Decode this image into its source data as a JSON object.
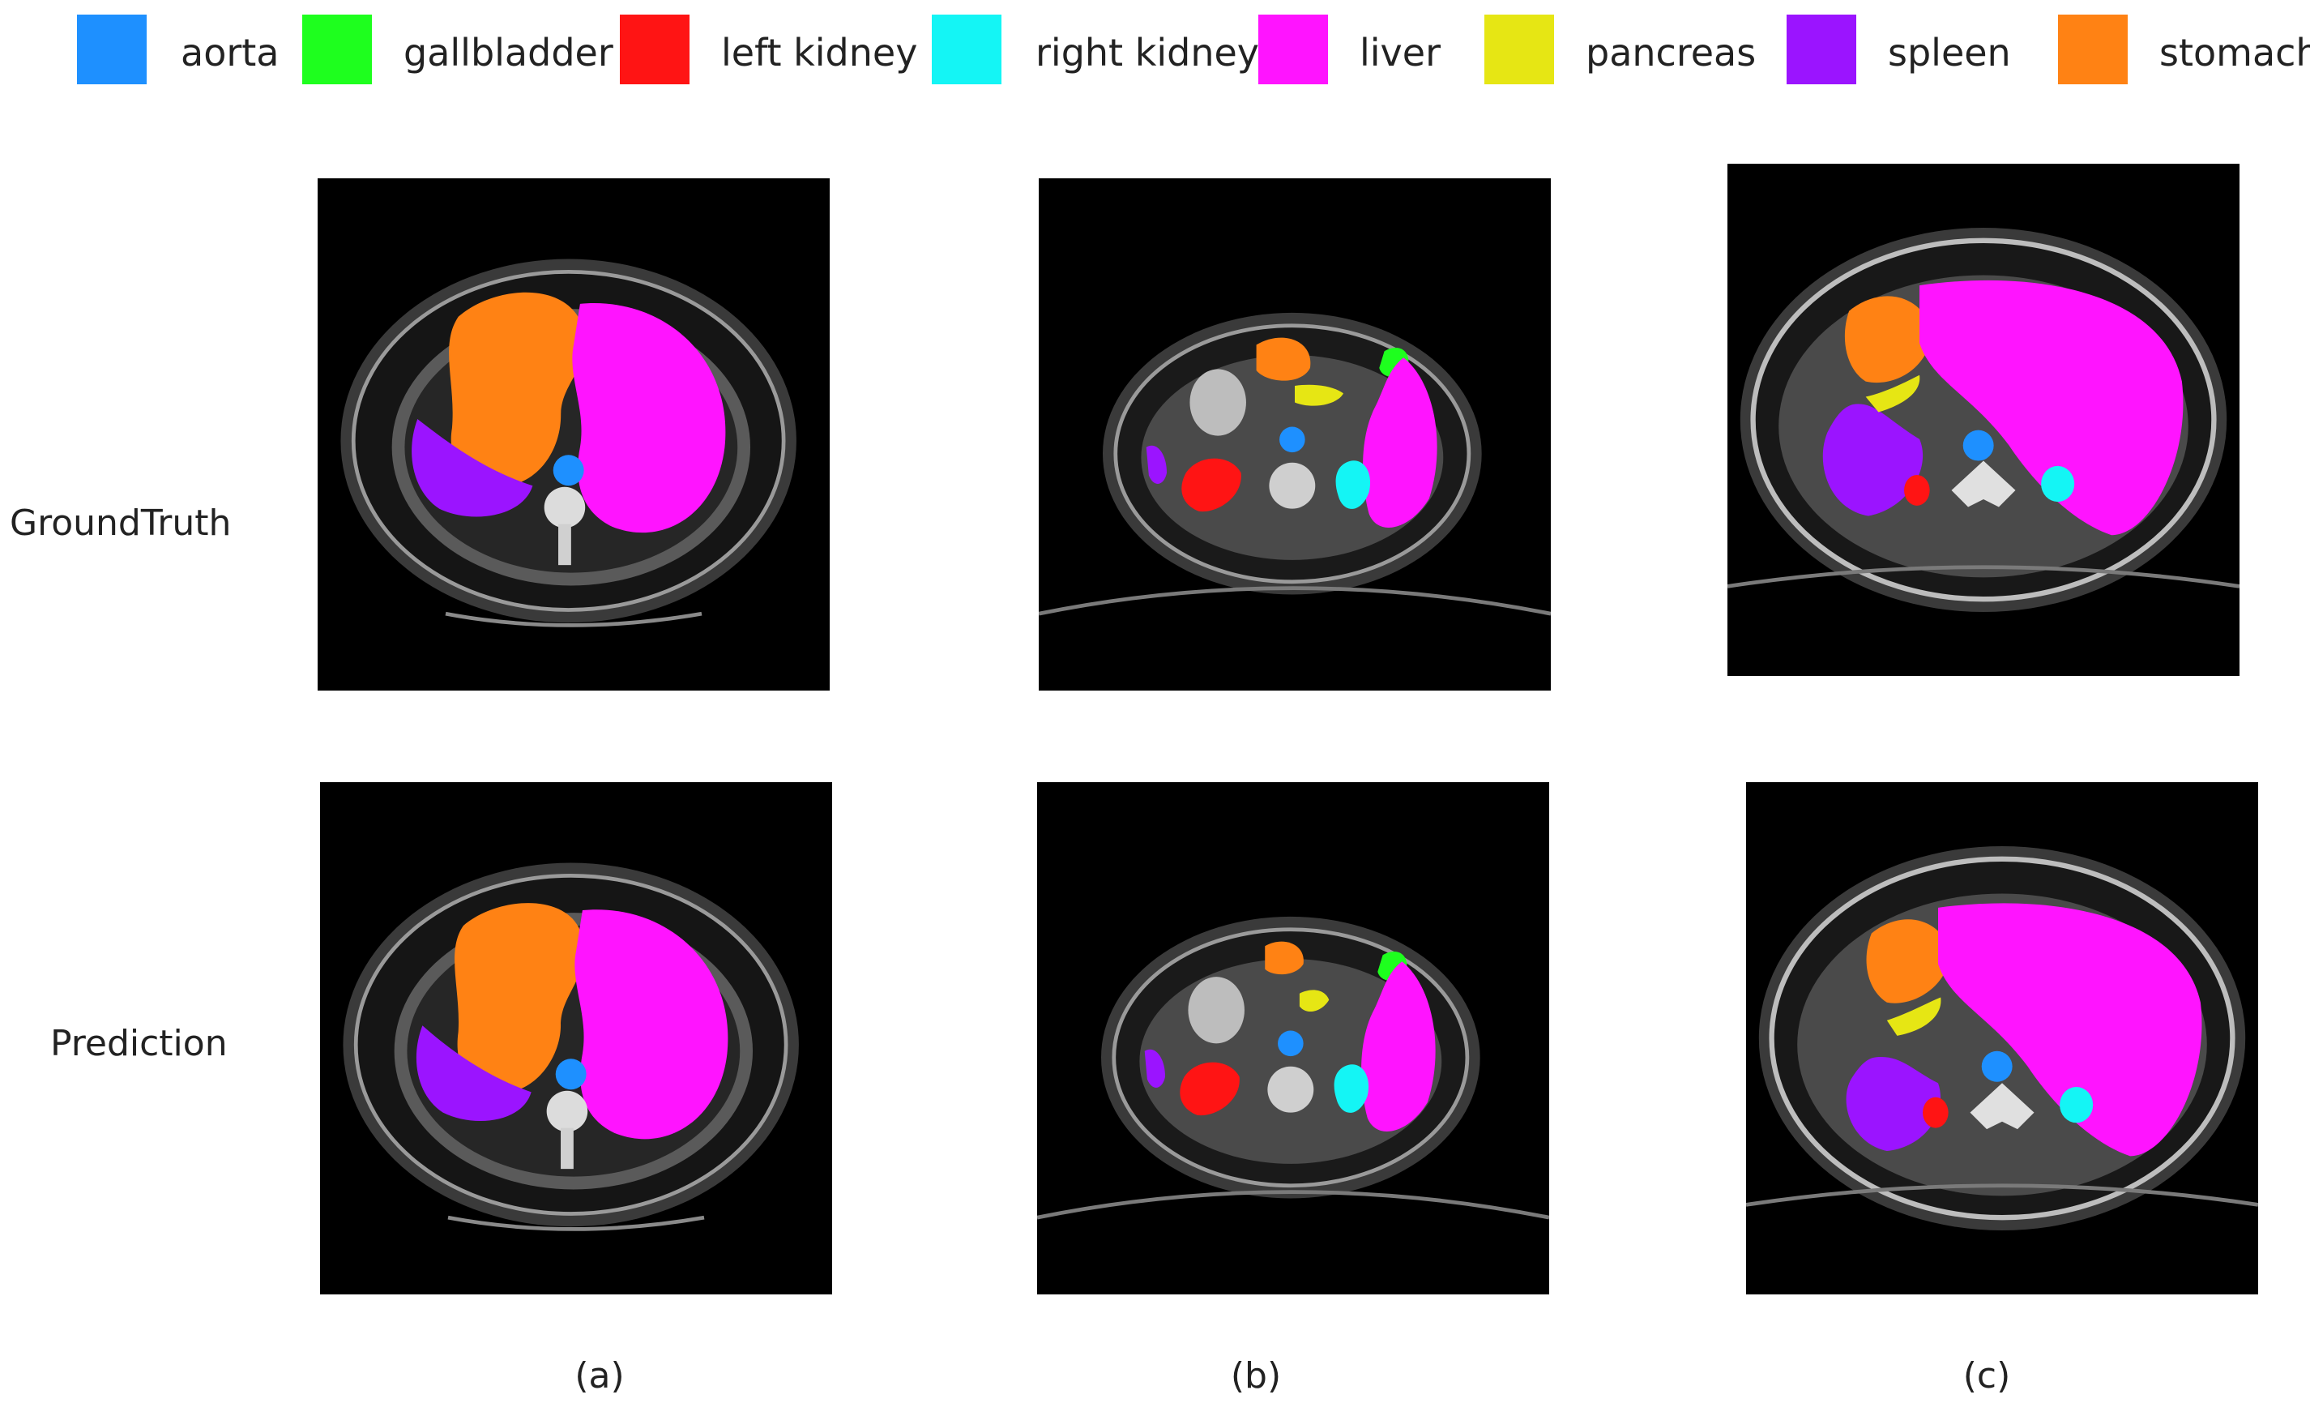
{
  "legend": [
    {
      "label": "aorta",
      "color": "#1e90ff"
    },
    {
      "label": "gallbladder",
      "color": "#1eff1e"
    },
    {
      "label": "left kidney",
      "color": "#ff1414"
    },
    {
      "label": "right kidney",
      "color": "#14f5f5"
    },
    {
      "label": "liver",
      "color": "#ff14ff"
    },
    {
      "label": "pancreas",
      "color": "#e6e614"
    },
    {
      "label": "spleen",
      "color": "#9b14ff"
    },
    {
      "label": "stomach",
      "color": "#ff8214"
    }
  ],
  "rows": {
    "ground_truth": "GroundTruth",
    "prediction": "Prediction"
  },
  "columns": [
    "(a)",
    "(b)",
    "(c)"
  ]
}
